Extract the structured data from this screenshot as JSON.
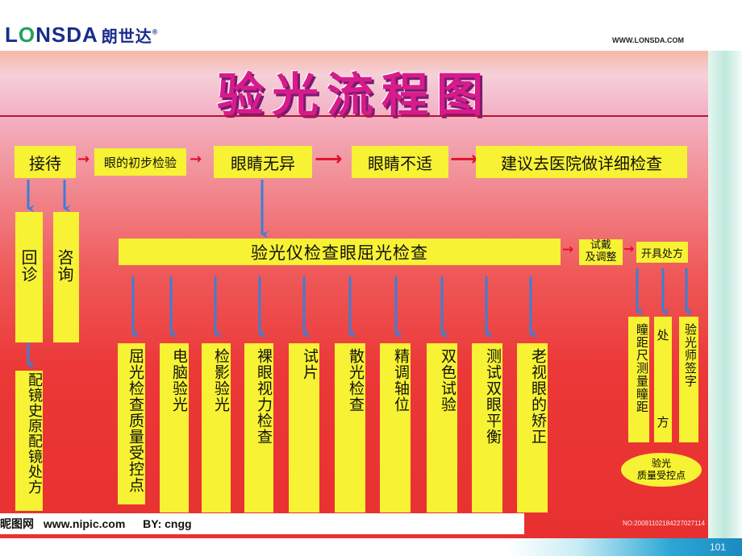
{
  "header": {
    "logo_en_a": "L",
    "logo_o": "O",
    "logo_en_b": "NSDA",
    "logo_cn": "朗世达",
    "logo_reg": "®",
    "website": "WWW.LONSDA.COM"
  },
  "title": "验光流程图",
  "row1": {
    "reception": "接待",
    "initial_check": "眼的初步检验",
    "eyes_normal": "眼睛无异",
    "eyes_discomfort": "眼睛不适",
    "hospital": "建议去医院做详细检查"
  },
  "left_boxes": {
    "revisit": "回诊",
    "consult": "咨询",
    "history": "配镜史原配镜处方"
  },
  "main_bar": "验光仪检查眼屈光检查",
  "trial": "试戴及调整",
  "trial_line1": "试戴",
  "trial_line2": "及调整",
  "prescribe": "开具处方",
  "steps": [
    "屈光检查质量受控点",
    "电脑验光",
    "检影验光",
    "裸眼视力检查",
    "试片",
    "散光检查",
    "精调轴位",
    "双色试验",
    "测试双眼平衡",
    "老视眼的矫正"
  ],
  "right_boxes": [
    "瞳距尺测量瞳距",
    "处方",
    "验光师签字"
  ],
  "right_box_prescription_top": "处",
  "right_box_prescription_bottom": "方",
  "qc_oval": {
    "line1": "验光",
    "line2": "质量受控点"
  },
  "watermark": {
    "site_cn": "昵图网",
    "url": "www.nipic.com",
    "by": "BY: cngg",
    "id": "NO:20091102184227027114"
  },
  "page_number": "101",
  "colors": {
    "box_fill": "#f7f233",
    "arrow_red": "#e2102a",
    "arrow_blue": "#3a7fd8",
    "title_magenta": "#d81b8c"
  }
}
